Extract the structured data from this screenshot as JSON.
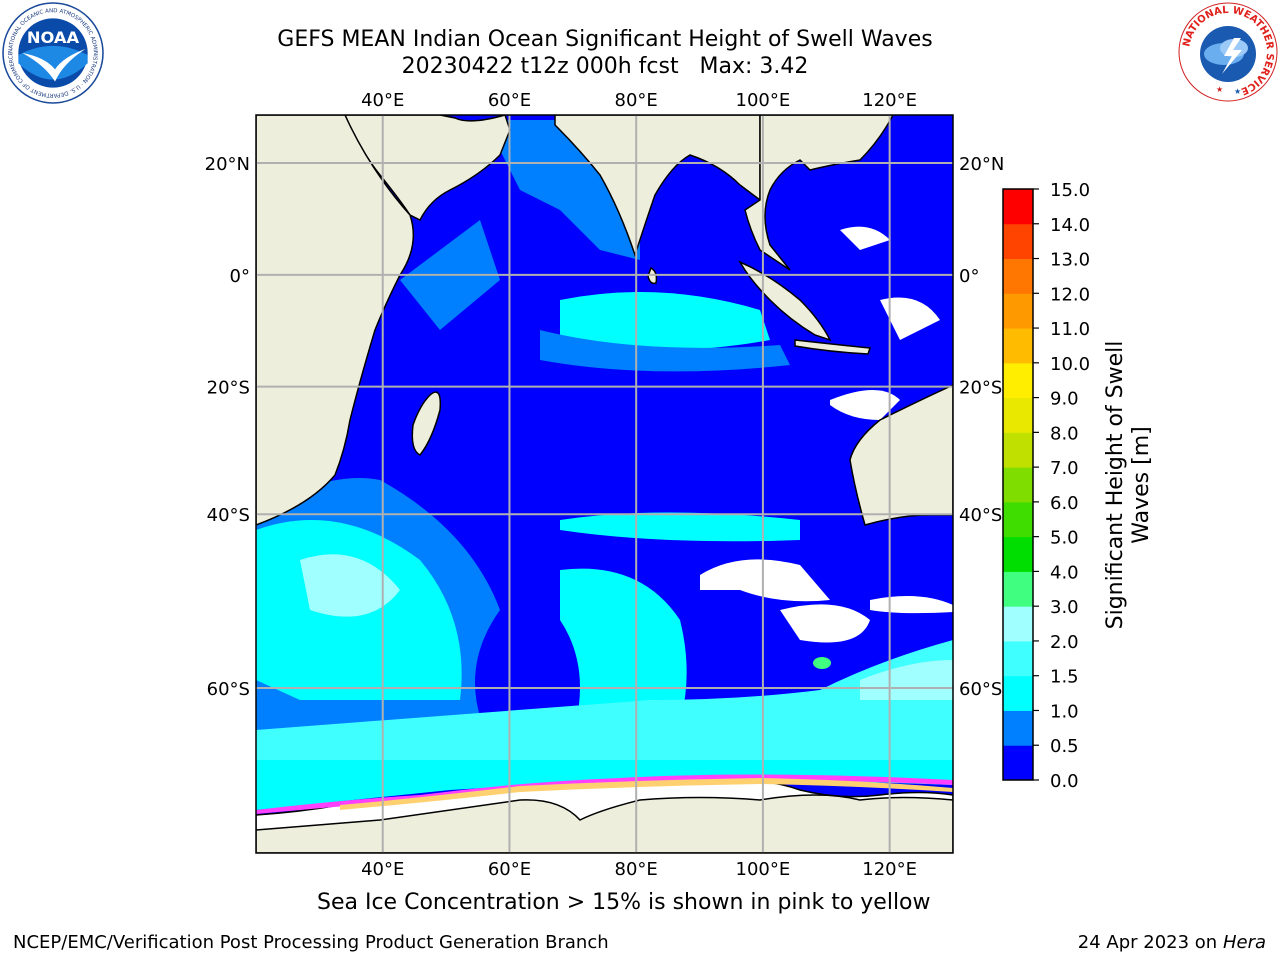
{
  "title": {
    "line1": "GEFS MEAN Indian Ocean Significant Height of Swell Waves",
    "line2": "20230422 t12z 000h fcst   Max: 3.42"
  },
  "map": {
    "lon_ticks": [
      "40°E",
      "60°E",
      "80°E",
      "100°E",
      "120°E"
    ],
    "lat_ticks": [
      "20°N",
      "0°",
      "20°S",
      "40°S",
      "60°S"
    ],
    "lon_values": [
      40,
      60,
      80,
      100,
      120
    ],
    "lat_values": [
      20,
      0,
      -20,
      -40,
      -60
    ],
    "lon_range": [
      20,
      130
    ],
    "lat_range": [
      -72,
      28
    ],
    "colors": {
      "land": "#eeeedd",
      "ocean_low": "#0000ff",
      "ocean_mid": "#0080ff",
      "ocean_cyan": "#00ffff",
      "ocean_light": "#40ffff",
      "ice_pink": "#ff40ff",
      "ice_yellow": "#ffd070",
      "grid": "#b0b0b0"
    }
  },
  "colorbar": {
    "label_line1": "Significant Height of Swell",
    "label_line2": "Waves [m]",
    "ticks": [
      "0.0",
      "0.5",
      "1.0",
      "1.5",
      "2.0",
      "3.0",
      "4.0",
      "5.0",
      "6.0",
      "7.0",
      "8.0",
      "9.0",
      "10.0",
      "11.0",
      "12.0",
      "13.0",
      "14.0",
      "15.0"
    ],
    "colors": [
      "#0000ff",
      "#0080ff",
      "#00ffff",
      "#40ffff",
      "#a0ffff",
      "#40ff80",
      "#00dd00",
      "#40dd00",
      "#80dd00",
      "#c0e000",
      "#e8e800",
      "#ffee00",
      "#ffbb00",
      "#ff9900",
      "#ff7700",
      "#ff4400",
      "#ff0000"
    ]
  },
  "ice_note": "Sea Ice Concentration > 15% is shown in pink to yellow",
  "footer": {
    "left": "NCEP/EMC/Verification Post Processing Product Generation Branch",
    "right_prefix": "24 Apr 2023 on ",
    "right_italic": "Hera"
  },
  "logos": {
    "noaa_text": "NOAA",
    "noaa_ring": "NATIONAL OCEANIC AND ATMOSPHERIC ADMINISTRATION · U.S. DEPARTMENT OF COMMERCE",
    "nws_ring": "NATIONAL WEATHER SERVICE"
  }
}
